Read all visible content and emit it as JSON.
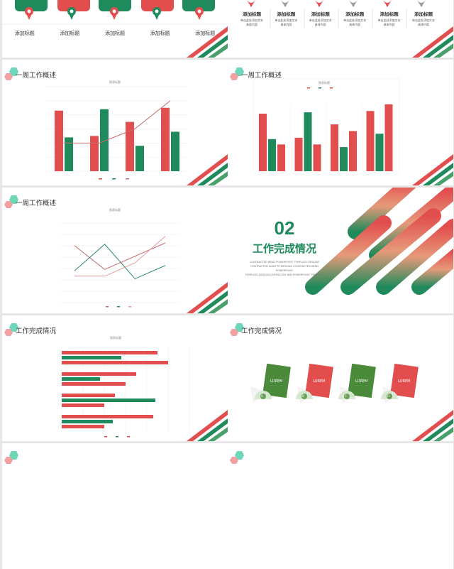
{
  "colors": {
    "red": "#e24e4e",
    "green": "#1f8a5b",
    "lightgreen": "#6fd7b9",
    "pink": "#f2a0a0",
    "grid": "#e6e6e6"
  },
  "slide1": {
    "labels": [
      "添加标题",
      "添加标题",
      "添加标题",
      "添加标题",
      "添加标题"
    ]
  },
  "slide2": {
    "items": [
      {
        "title": "添加标题",
        "desc1": "单击此处添加文本",
        "desc2": "具体内容"
      },
      {
        "title": "添加标题",
        "desc1": "单击此处添加文本",
        "desc2": "具体内容"
      },
      {
        "title": "添加标题",
        "desc1": "单击此处添加文本",
        "desc2": "具体内容"
      },
      {
        "title": "添加标题",
        "desc1": "单击此处添加文本",
        "desc2": "具体内容"
      },
      {
        "title": "添加标题",
        "desc1": "单击此处添加文本",
        "desc2": "具体内容"
      },
      {
        "title": "添加标题",
        "desc1": "单击此处添加文本",
        "desc2": "具体内容"
      }
    ]
  },
  "slide3": {
    "title": "一周工作概述",
    "chart_title": "图表标题"
  },
  "slide4": {
    "title": "一周工作概述",
    "chart_title": "图表标题"
  },
  "slide5": {
    "title": "一周工作概述",
    "chart_title": "图表标题"
  },
  "slide6": {
    "number": "02",
    "title": "工作完成情况",
    "sub1": "CONTRACTED WIND POWERPOINT TEMPLATE DESIGNS",
    "sub2": "CONTRACTED WIND TE DESIGNS CONTRACTED WIND POWERPOINT",
    "sub3": "TEMPLATE DESIGNCONTRACTED WIN POWERPOINT TEMPLATE"
  },
  "slide7": {
    "title": "工作完成情况",
    "chart_title": "图表标题"
  },
  "slide8": {
    "title": "工作完成情况",
    "cards": [
      {
        "text": "LOREM",
        "letter": "A",
        "color": "green"
      },
      {
        "text": "LOREM",
        "letter": "B",
        "color": "red"
      },
      {
        "text": "LOREM",
        "letter": "C",
        "color": "green"
      },
      {
        "text": "LOREM",
        "letter": "D",
        "color": "red"
      }
    ]
  },
  "chart_data": [
    {
      "type": "bar+line",
      "title": "图表标题",
      "categories": [
        "",
        "",
        "",
        ""
      ],
      "series": [
        {
          "kind": "bar",
          "color": "#e24e4e",
          "values": [
            4.3,
            2.5,
            3.5,
            4.5
          ]
        },
        {
          "kind": "bar",
          "color": "#1f8a5b",
          "values": [
            2.4,
            4.4,
            1.8,
            2.8
          ]
        },
        {
          "kind": "line",
          "color": "#c86a6a",
          "values": [
            2,
            2,
            3,
            5
          ]
        }
      ],
      "ylim": [
        0,
        6
      ]
    },
    {
      "type": "bar",
      "title": "图表标题",
      "series": [
        {
          "color": "#e24e4e",
          "values": [
            4.3,
            2.5,
            3.5,
            4.5
          ]
        },
        {
          "color": "#1f8a5b",
          "values": [
            2.4,
            4.4,
            1.8,
            2.8
          ]
        },
        {
          "color": "#e24e4e",
          "values": [
            2,
            2,
            3,
            5
          ]
        }
      ],
      "ylim": [
        0,
        6
      ]
    },
    {
      "type": "line",
      "title": "图表标题",
      "series": [
        {
          "color": "#c86a6a",
          "values": [
            4.3,
            2.5,
            3.5,
            4.5
          ]
        },
        {
          "color": "#2a8a70",
          "values": [
            2.4,
            4.4,
            1.8,
            2.8
          ]
        },
        {
          "color": "#e29a9a",
          "values": [
            2,
            2,
            3,
            5
          ]
        }
      ],
      "ylim": [
        0,
        6
      ]
    },
    {
      "type": "hbar",
      "title": "图表标题",
      "series": [
        {
          "color": "#e24e4e",
          "values": [
            4.3,
            2.5,
            3.5,
            4.5
          ]
        },
        {
          "color": "#1f8a5b",
          "values": [
            2.4,
            4.4,
            1.8,
            2.8
          ]
        },
        {
          "color": "#e24e4e",
          "values": [
            2,
            2,
            3,
            5
          ]
        }
      ],
      "xlim": [
        0,
        6
      ]
    }
  ]
}
